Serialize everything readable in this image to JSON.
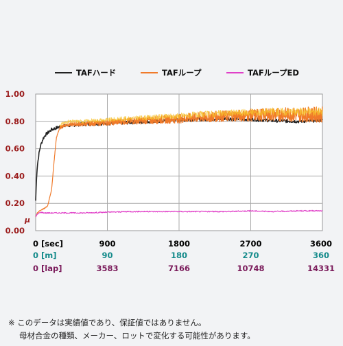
{
  "chart_data": {
    "type": "line",
    "title": "",
    "ylabel": "μ",
    "ylim": [
      0,
      1.0
    ],
    "y_ticks": [
      "0.00",
      "0.20",
      "0.40",
      "0.60",
      "0.80",
      "1.00"
    ],
    "y_tick_values": [
      0,
      0.2,
      0.4,
      0.6,
      0.8,
      1.0
    ],
    "xlim": [
      0,
      3600
    ],
    "grid": true,
    "legend_placement": "top",
    "x_axes": [
      {
        "label": "[sec]",
        "ticks": [
          "0",
          "900",
          "1800",
          "2700",
          "3600"
        ],
        "color": "#000000"
      },
      {
        "label": "[m]",
        "ticks": [
          "0",
          "90",
          "180",
          "270",
          "360"
        ],
        "color": "#138a8a"
      },
      {
        "label": "[lap]",
        "ticks": [
          "0",
          "3583",
          "7166",
          "10748",
          "14331"
        ],
        "color": "#7a1a5a"
      }
    ],
    "series": [
      {
        "name": "TAFハード",
        "color": "#222222",
        "x": [
          0,
          10,
          20,
          40,
          60,
          90,
          120,
          160,
          200,
          250,
          300,
          400,
          500,
          600,
          700,
          900,
          1100,
          1300,
          1500,
          1800,
          2100,
          2400,
          2700,
          3000,
          3300,
          3600
        ],
        "y": [
          0.22,
          0.38,
          0.47,
          0.56,
          0.62,
          0.67,
          0.7,
          0.72,
          0.74,
          0.75,
          0.76,
          0.77,
          0.775,
          0.78,
          0.78,
          0.785,
          0.79,
          0.795,
          0.8,
          0.81,
          0.815,
          0.82,
          0.815,
          0.805,
          0.8,
          0.81
        ]
      },
      {
        "name": "TAFループ",
        "color": "#f07a2a",
        "x": [
          0,
          20,
          60,
          100,
          150,
          200,
          230,
          260,
          300,
          350,
          400,
          500,
          600,
          700,
          900,
          1100,
          1300,
          1500,
          1800,
          2100,
          2400,
          2700,
          3000,
          3300,
          3600
        ],
        "y": [
          0.1,
          0.13,
          0.15,
          0.16,
          0.18,
          0.3,
          0.5,
          0.68,
          0.75,
          0.77,
          0.775,
          0.78,
          0.78,
          0.785,
          0.79,
          0.8,
          0.805,
          0.81,
          0.82,
          0.83,
          0.84,
          0.845,
          0.85,
          0.85,
          0.85
        ]
      },
      {
        "name": "TAFループED",
        "color": "#e040c8",
        "x": [
          0,
          20,
          60,
          120,
          200,
          400,
          600,
          900,
          1200,
          1500,
          1800,
          2100,
          2400,
          2700,
          3000,
          3300,
          3600
        ],
        "y": [
          0.1,
          0.12,
          0.135,
          0.13,
          0.13,
          0.13,
          0.13,
          0.135,
          0.14,
          0.14,
          0.14,
          0.14,
          0.14,
          0.145,
          0.14,
          0.145,
          0.145
        ]
      }
    ]
  },
  "notes": [
    "※ このデータは実績値であり、保証値ではありません。",
    "母材合金の種類、メーカー、ロットで変化する可能性があります。"
  ]
}
